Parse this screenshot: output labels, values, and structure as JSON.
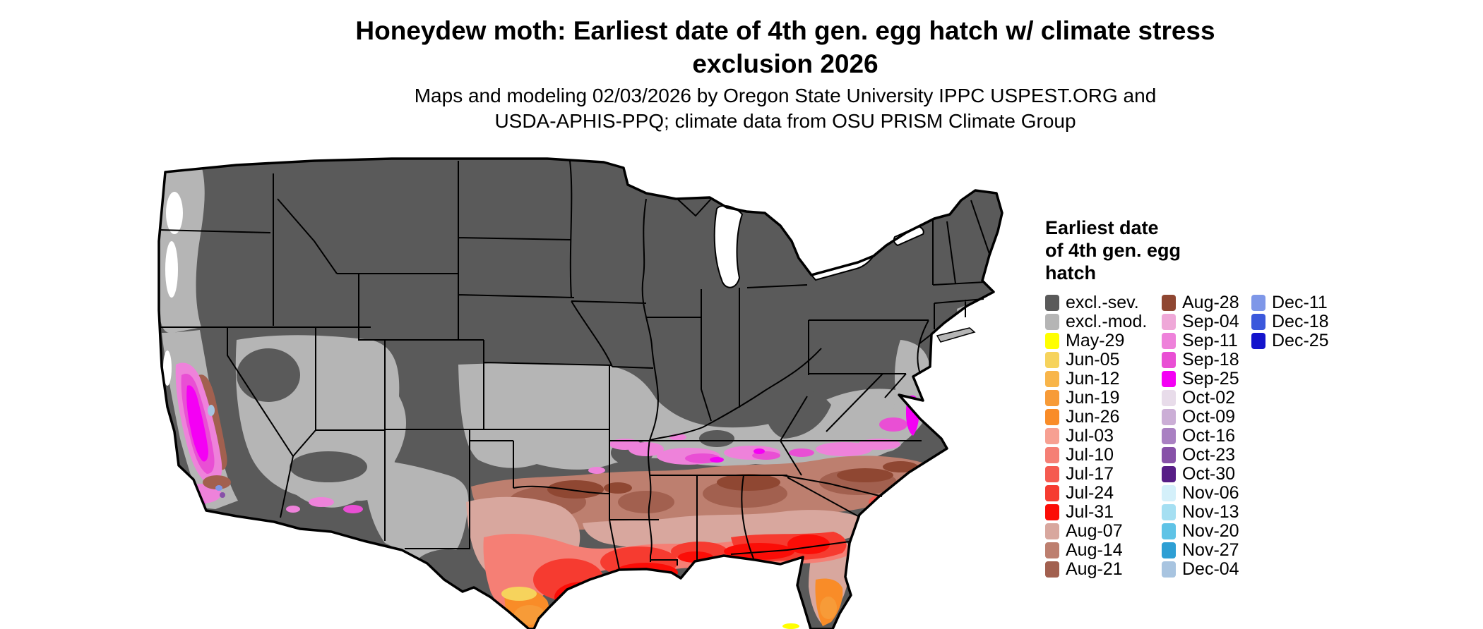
{
  "figure": {
    "title": "Honeydew moth: Earliest date of 4th gen. egg hatch w/ climate stress exclusion 2026",
    "subtitle": "Maps and modeling 02/03/2026 by Oregon State University IPPC USPEST.ORG and USDA-APHIS-PPQ; climate data from OSU PRISM Climate Group"
  },
  "legend": {
    "title": "Earliest date\nof 4th gen. egg\nhatch",
    "columns": [
      [
        {
          "label": "excl.-sev.",
          "color": "#5a5a5a"
        },
        {
          "label": "excl.-mod.",
          "color": "#b5b5b5"
        },
        {
          "label": "May-29",
          "color": "#ffff00"
        },
        {
          "label": "Jun-05",
          "color": "#f6d35c"
        },
        {
          "label": "Jun-12",
          "color": "#f8b54a"
        },
        {
          "label": "Jun-19",
          "color": "#f79b38"
        },
        {
          "label": "Jun-26",
          "color": "#f98c28"
        },
        {
          "label": "Jul-03",
          "color": "#f7a092"
        },
        {
          "label": "Jul-10",
          "color": "#f57f75"
        },
        {
          "label": "Jul-17",
          "color": "#f55a50"
        },
        {
          "label": "Jul-24",
          "color": "#f63b30"
        },
        {
          "label": "Jul-31",
          "color": "#fb0d07"
        },
        {
          "label": "Aug-07",
          "color": "#d8a79e"
        },
        {
          "label": "Aug-14",
          "color": "#bd7f6f"
        },
        {
          "label": "Aug-21",
          "color": "#a2604f"
        }
      ],
      [
        {
          "label": "Aug-28",
          "color": "#8f4732"
        },
        {
          "label": "Sep-04",
          "color": "#efa8d8"
        },
        {
          "label": "Sep-11",
          "color": "#ee82da"
        },
        {
          "label": "Sep-18",
          "color": "#e94fd4"
        },
        {
          "label": "Sep-25",
          "color": "#f400f4"
        },
        {
          "label": "Oct-02",
          "color": "#e8dcea"
        },
        {
          "label": "Oct-09",
          "color": "#cbaed6"
        },
        {
          "label": "Oct-16",
          "color": "#a980c2"
        },
        {
          "label": "Oct-23",
          "color": "#8751a8"
        },
        {
          "label": "Oct-30",
          "color": "#571e86"
        },
        {
          "label": "Nov-06",
          "color": "#d4f0fa"
        },
        {
          "label": "Nov-13",
          "color": "#a5dff2"
        },
        {
          "label": "Nov-20",
          "color": "#5fc3e6"
        },
        {
          "label": "Nov-27",
          "color": "#2e9fd4"
        },
        {
          "label": "Dec-04",
          "color": "#a8c4e0"
        }
      ],
      [
        {
          "label": "Dec-11",
          "color": "#7e97e8"
        },
        {
          "label": "Dec-18",
          "color": "#3b58dc"
        },
        {
          "label": "Dec-25",
          "color": "#1414cc"
        }
      ]
    ]
  }
}
